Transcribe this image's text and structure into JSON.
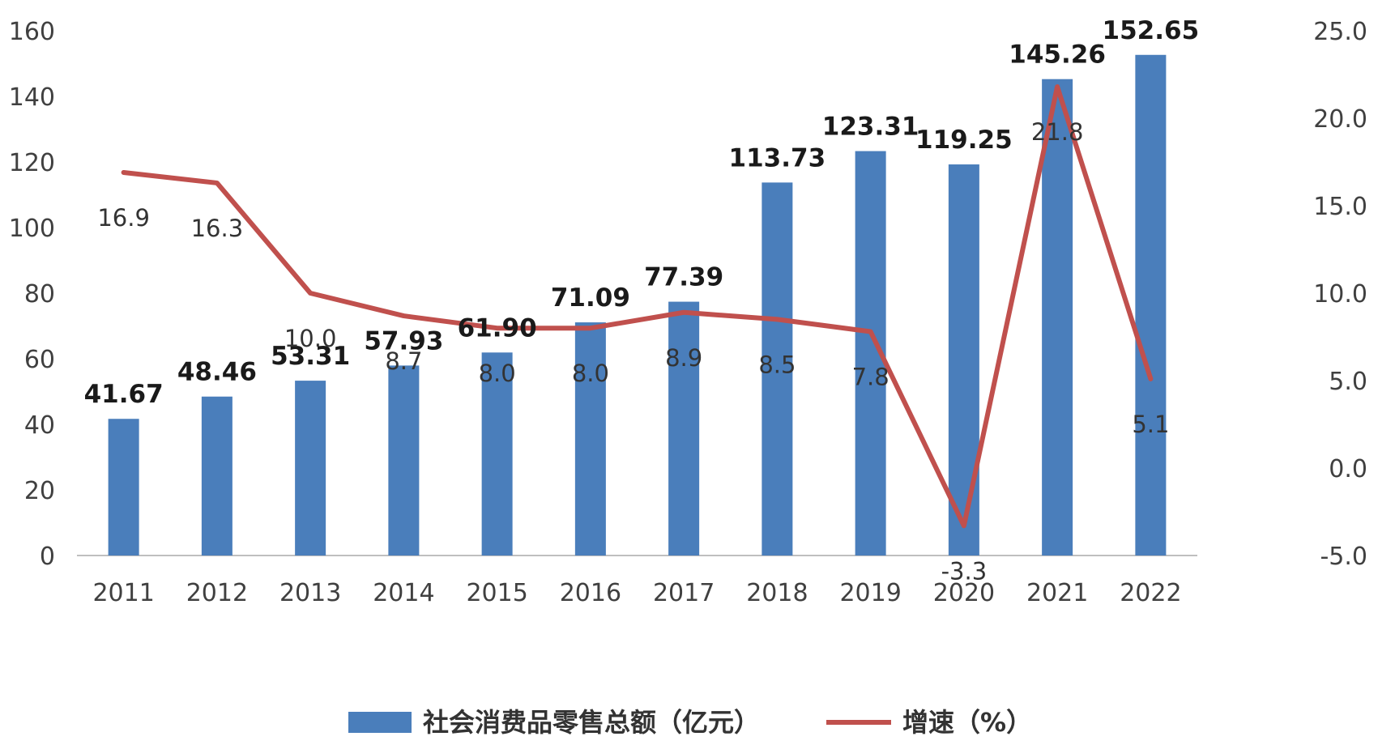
{
  "chart_data": {
    "type": "bar+line",
    "categories": [
      "2011",
      "2012",
      "2013",
      "2014",
      "2015",
      "2016",
      "2017",
      "2018",
      "2019",
      "2020",
      "2021",
      "2022"
    ],
    "series": [
      {
        "name": "社会消费品零售总额（亿元）",
        "type": "bar",
        "axis": "left",
        "color": "#4A7EBB",
        "values": [
          41.67,
          48.46,
          53.31,
          57.93,
          61.9,
          71.09,
          77.39,
          113.73,
          123.31,
          119.25,
          145.26,
          152.65
        ],
        "labels": [
          "41.67",
          "48.46",
          "53.31",
          "57.93",
          "61.90",
          "71.09",
          "77.39",
          "113.73",
          "123.31",
          "119.25",
          "145.26",
          "152.65"
        ]
      },
      {
        "name": "增速（%）",
        "type": "line",
        "axis": "right",
        "color": "#C0504D",
        "values": [
          16.9,
          16.3,
          10.0,
          8.7,
          8.0,
          8.0,
          8.9,
          8.5,
          7.8,
          -3.3,
          21.8,
          5.1
        ],
        "labels": [
          "16.9",
          "16.3",
          "10.0",
          "8.7",
          "8.0",
          "8.0",
          "8.9",
          "8.5",
          "7.8",
          "-3.3",
          "21.8",
          "5.1"
        ]
      }
    ],
    "y_left": {
      "min": 0,
      "max": 160,
      "ticks": [
        "0",
        "20",
        "40",
        "60",
        "80",
        "100",
        "120",
        "140",
        "160"
      ]
    },
    "y_right": {
      "min": -5,
      "max": 25,
      "ticks": [
        "-5.0",
        "0.0",
        "5.0",
        "10.0",
        "15.0",
        "20.0",
        "25.0"
      ]
    },
    "grid": false,
    "legend": "bottom"
  }
}
